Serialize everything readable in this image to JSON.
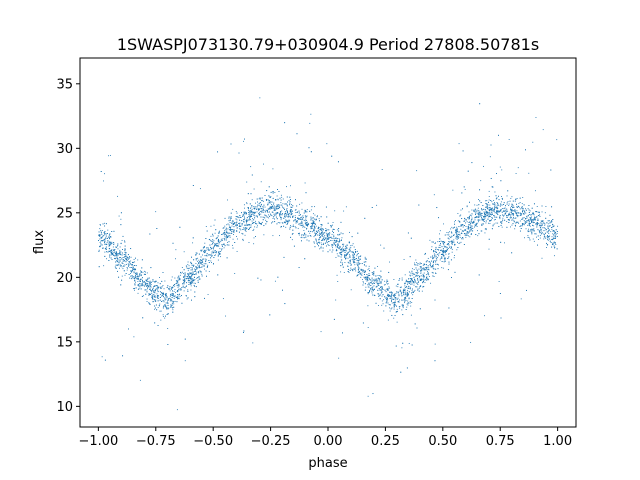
{
  "chart_data": {
    "type": "scatter",
    "title": "1SWASPJ073130.79+030904.9 Period 27808.50781s",
    "xlabel": "phase",
    "ylabel": "flux",
    "xlim": [
      -1.08,
      1.08
    ],
    "ylim": [
      8.4,
      37.0
    ],
    "x_ticks": [
      -1.0,
      -0.75,
      -0.5,
      -0.25,
      0.0,
      0.25,
      0.5,
      0.75,
      1.0
    ],
    "x_tick_labels": [
      "−1.00",
      "−0.75",
      "−0.50",
      "−0.25",
      "0.00",
      "0.25",
      "0.50",
      "0.75",
      "1.00"
    ],
    "y_ticks": [
      10,
      15,
      20,
      25,
      30,
      35
    ],
    "y_tick_labels": [
      "10",
      "15",
      "20",
      "25",
      "30",
      "35"
    ],
    "grid": false,
    "legend": "none",
    "series": [
      {
        "marker_color": "#1f77b4",
        "mean_curve": {
          "phase": [
            -1.0,
            -0.9,
            -0.8,
            -0.75,
            -0.7,
            -0.6,
            -0.5,
            -0.4,
            -0.3,
            -0.25,
            -0.2,
            -0.1,
            0.0,
            0.1,
            0.2,
            0.25,
            0.3,
            0.4,
            0.5,
            0.6,
            0.7,
            0.75,
            0.8,
            0.9,
            1.0
          ],
          "flux": [
            23.2,
            21.5,
            19.5,
            18.7,
            18.3,
            20.0,
            22.2,
            24.0,
            25.0,
            25.3,
            25.1,
            24.2,
            23.2,
            21.5,
            19.5,
            18.7,
            18.3,
            20.0,
            22.2,
            24.0,
            25.0,
            25.3,
            25.1,
            24.2,
            23.2
          ]
        },
        "scatter_sd": 0.6,
        "n_points": 6000
      }
    ]
  }
}
